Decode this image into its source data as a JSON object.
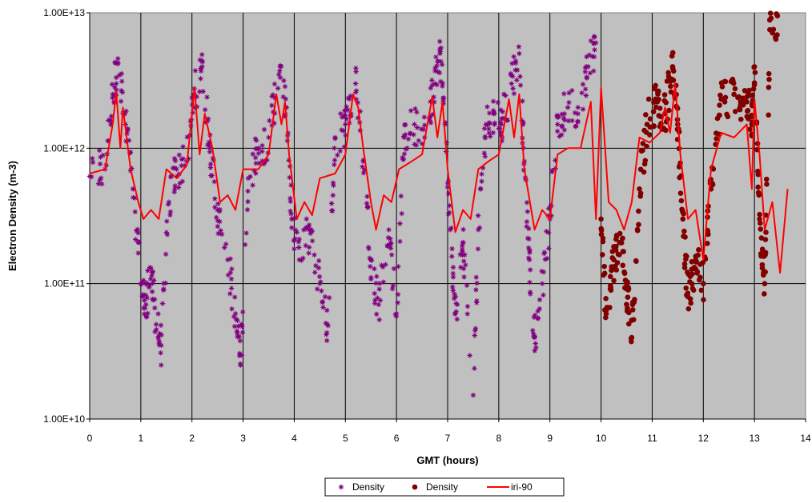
{
  "chart_data": {
    "type": "scatter",
    "title": "",
    "xlabel": "GMT (hours)",
    "ylabel": "Electron Density (m-3)",
    "xlim": [
      0,
      14
    ],
    "ylim": [
      10000000000.0,
      10000000000000.0
    ],
    "y_scale": "log",
    "x_ticks": [
      "0",
      "1",
      "2",
      "3",
      "4",
      "5",
      "6",
      "7",
      "8",
      "9",
      "10",
      "11",
      "12",
      "13",
      "14"
    ],
    "y_ticks": [
      "1.00E+10",
      "1.00E+11",
      "1.00E+12",
      "1.00E+13"
    ],
    "grid": true,
    "plot_background": "#c0c0c0",
    "legend_position": "bottom-center",
    "series": [
      {
        "name": "Density",
        "marker": "asterisk",
        "color": "#800080",
        "keypoints": [
          [
            0.0,
            620000000000.0
          ],
          [
            0.3,
            700000000000.0
          ],
          [
            0.45,
            2500000000000.0
          ],
          [
            0.55,
            4200000000000.0
          ],
          [
            0.7,
            1500000000000.0
          ],
          [
            0.85,
            500000000000.0
          ],
          [
            1.0,
            100000000000.0
          ],
          [
            1.1,
            70000000000.0
          ],
          [
            1.2,
            130000000000.0
          ],
          [
            1.3,
            50000000000.0
          ],
          [
            1.4,
            35000000000.0
          ],
          [
            1.55,
            400000000000.0
          ],
          [
            1.7,
            700000000000.0
          ],
          [
            1.9,
            800000000000.0
          ],
          [
            2.05,
            2500000000000.0
          ],
          [
            2.2,
            4000000000000.0
          ],
          [
            2.35,
            1000000000000.0
          ],
          [
            2.5,
            350000000000.0
          ],
          [
            2.7,
            150000000000.0
          ],
          [
            2.85,
            60000000000.0
          ],
          [
            2.95,
            25000000000.0
          ],
          [
            3.1,
            600000000000.0
          ],
          [
            3.3,
            1000000000000.0
          ],
          [
            3.5,
            1200000000000.0
          ],
          [
            3.7,
            3500000000000.0
          ],
          [
            3.85,
            2000000000000.0
          ],
          [
            3.95,
            300000000000.0
          ],
          [
            4.1,
            150000000000.0
          ],
          [
            4.3,
            250000000000.0
          ],
          [
            4.5,
            100000000000.0
          ],
          [
            4.65,
            50000000000.0
          ],
          [
            4.8,
            1200000000000.0
          ],
          [
            5.0,
            1500000000000.0
          ],
          [
            5.2,
            3000000000000.0
          ],
          [
            5.35,
            800000000000.0
          ],
          [
            5.5,
            150000000000.0
          ],
          [
            5.65,
            70000000000.0
          ],
          [
            5.85,
            250000000000.0
          ],
          [
            6.0,
            60000000000.0
          ],
          [
            6.15,
            1200000000000.0
          ],
          [
            6.35,
            1500000000000.0
          ],
          [
            6.55,
            1200000000000.0
          ],
          [
            6.75,
            3000000000000.0
          ],
          [
            6.85,
            5000000000000.0
          ],
          [
            6.95,
            1500000000000.0
          ],
          [
            7.05,
            250000000000.0
          ],
          [
            7.15,
            60000000000.0
          ],
          [
            7.3,
            200000000000.0
          ],
          [
            7.5,
            15000000000.0
          ],
          [
            7.6,
            250000000000.0
          ],
          [
            7.75,
            1500000000000.0
          ],
          [
            7.9,
            1800000000000.0
          ],
          [
            8.05,
            1500000000000.0
          ],
          [
            8.25,
            3000000000000.0
          ],
          [
            8.4,
            5000000000000.0
          ],
          [
            8.5,
            800000000000.0
          ],
          [
            8.6,
            150000000000.0
          ],
          [
            8.7,
            40000000000.0
          ],
          [
            8.85,
            100000000000.0
          ],
          [
            9.0,
            300000000000.0
          ],
          [
            9.15,
            1500000000000.0
          ],
          [
            9.35,
            2000000000000.0
          ],
          [
            9.55,
            2000000000000.0
          ],
          [
            9.75,
            4000000000000.0
          ],
          [
            9.9,
            6000000000000.0
          ]
        ]
      },
      {
        "name": "Density",
        "marker": "circle",
        "color": "#800000",
        "keypoints": [
          [
            10.0,
            300000000000.0
          ],
          [
            10.1,
            60000000000.0
          ],
          [
            10.25,
            150000000000.0
          ],
          [
            10.4,
            200000000000.0
          ],
          [
            10.5,
            100000000000.0
          ],
          [
            10.6,
            40000000000.0
          ],
          [
            10.75,
            500000000000.0
          ],
          [
            10.9,
            1500000000000.0
          ],
          [
            11.1,
            2200000000000.0
          ],
          [
            11.25,
            1800000000000.0
          ],
          [
            11.4,
            4000000000000.0
          ],
          [
            11.5,
            1500000000000.0
          ],
          [
            11.6,
            300000000000.0
          ],
          [
            11.7,
            80000000000.0
          ],
          [
            11.85,
            150000000000.0
          ],
          [
            12.0,
            100000000000.0
          ],
          [
            12.15,
            500000000000.0
          ],
          [
            12.35,
            2300000000000.0
          ],
          [
            12.6,
            2500000000000.0
          ],
          [
            12.85,
            2200000000000.0
          ],
          [
            12.95,
            1500000000000.0
          ],
          [
            13.0,
            4000000000000.0
          ],
          [
            13.1,
            300000000000.0
          ],
          [
            13.2,
            100000000000.0
          ],
          [
            13.3,
            7500000000000.0
          ],
          [
            13.45,
            9500000000000.0
          ]
        ]
      },
      {
        "name": "iri-90",
        "marker": "line",
        "color": "#ff0000",
        "points": [
          [
            0.0,
            650000000000.0
          ],
          [
            0.3,
            700000000000.0
          ],
          [
            0.45,
            1500000000000.0
          ],
          [
            0.52,
            2600000000000.0
          ],
          [
            0.6,
            1000000000000.0
          ],
          [
            0.65,
            2000000000000.0
          ],
          [
            0.8,
            700000000000.0
          ],
          [
            0.95,
            400000000000.0
          ],
          [
            1.05,
            300000000000.0
          ],
          [
            1.2,
            350000000000.0
          ],
          [
            1.35,
            300000000000.0
          ],
          [
            1.5,
            700000000000.0
          ],
          [
            1.7,
            600000000000.0
          ],
          [
            1.9,
            750000000000.0
          ],
          [
            2.05,
            2800000000000.0
          ],
          [
            2.15,
            900000000000.0
          ],
          [
            2.25,
            1800000000000.0
          ],
          [
            2.4,
            1000000000000.0
          ],
          [
            2.55,
            400000000000.0
          ],
          [
            2.7,
            450000000000.0
          ],
          [
            2.85,
            350000000000.0
          ],
          [
            3.0,
            700000000000.0
          ],
          [
            3.3,
            700000000000.0
          ],
          [
            3.5,
            900000000000.0
          ],
          [
            3.65,
            2500000000000.0
          ],
          [
            3.75,
            1500000000000.0
          ],
          [
            3.82,
            2200000000000.0
          ],
          [
            3.9,
            900000000000.0
          ],
          [
            4.05,
            300000000000.0
          ],
          [
            4.2,
            400000000000.0
          ],
          [
            4.35,
            320000000000.0
          ],
          [
            4.5,
            600000000000.0
          ],
          [
            4.8,
            650000000000.0
          ],
          [
            5.0,
            900000000000.0
          ],
          [
            5.15,
            2500000000000.0
          ],
          [
            5.25,
            2000000000000.0
          ],
          [
            5.35,
            1000000000000.0
          ],
          [
            5.5,
            400000000000.0
          ],
          [
            5.6,
            250000000000.0
          ],
          [
            5.75,
            450000000000.0
          ],
          [
            5.9,
            400000000000.0
          ],
          [
            6.05,
            700000000000.0
          ],
          [
            6.3,
            800000000000.0
          ],
          [
            6.5,
            900000000000.0
          ],
          [
            6.7,
            2400000000000.0
          ],
          [
            6.8,
            1200000000000.0
          ],
          [
            6.9,
            2200000000000.0
          ],
          [
            7.0,
            700000000000.0
          ],
          [
            7.15,
            240000000000.0
          ],
          [
            7.3,
            350000000000.0
          ],
          [
            7.45,
            300000000000.0
          ],
          [
            7.6,
            700000000000.0
          ],
          [
            7.8,
            800000000000.0
          ],
          [
            8.0,
            900000000000.0
          ],
          [
            8.2,
            2300000000000.0
          ],
          [
            8.3,
            1200000000000.0
          ],
          [
            8.4,
            2500000000000.0
          ],
          [
            8.5,
            700000000000.0
          ],
          [
            8.7,
            250000000000.0
          ],
          [
            8.85,
            350000000000.0
          ],
          [
            9.0,
            300000000000.0
          ],
          [
            9.15,
            900000000000.0
          ],
          [
            9.35,
            1000000000000.0
          ],
          [
            9.6,
            1000000000000.0
          ],
          [
            9.8,
            2200000000000.0
          ],
          [
            9.9,
            300000000000.0
          ],
          [
            10.0,
            2800000000000.0
          ],
          [
            10.15,
            400000000000.0
          ],
          [
            10.3,
            350000000000.0
          ],
          [
            10.45,
            250000000000.0
          ],
          [
            10.6,
            400000000000.0
          ],
          [
            10.75,
            1200000000000.0
          ],
          [
            10.95,
            1100000000000.0
          ],
          [
            11.15,
            1300000000000.0
          ],
          [
            11.25,
            2000000000000.0
          ],
          [
            11.35,
            1300000000000.0
          ],
          [
            11.45,
            3000000000000.0
          ],
          [
            11.55,
            900000000000.0
          ],
          [
            11.7,
            300000000000.0
          ],
          [
            11.85,
            350000000000.0
          ],
          [
            12.0,
            150000000000.0
          ],
          [
            12.15,
            700000000000.0
          ],
          [
            12.35,
            1300000000000.0
          ],
          [
            12.6,
            1200000000000.0
          ],
          [
            12.85,
            1500000000000.0
          ],
          [
            12.95,
            500000000000.0
          ],
          [
            13.0,
            2300000000000.0
          ],
          [
            13.1,
            900000000000.0
          ],
          [
            13.2,
            250000000000.0
          ],
          [
            13.35,
            400000000000.0
          ],
          [
            13.5,
            120000000000.0
          ],
          [
            13.65,
            500000000000.0
          ]
        ]
      }
    ]
  }
}
